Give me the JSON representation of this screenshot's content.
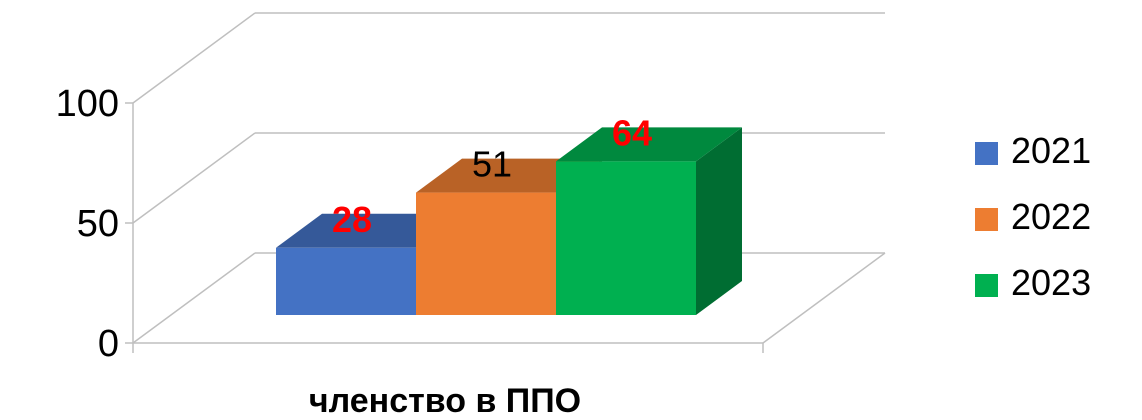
{
  "chart_data": {
    "type": "bar",
    "style": "3d-clustered-column",
    "categories": [
      "членство в ППО"
    ],
    "xlabel": "членство в ППО",
    "ylim": [
      0,
      100
    ],
    "yticks": [
      "0",
      "50",
      "100"
    ],
    "gridlines": true,
    "legend_position": "right",
    "series": [
      {
        "name": "2021",
        "values": [
          28
        ],
        "label": "28",
        "color": "#4472C4",
        "label_color": "#FF0000",
        "label_bold": true
      },
      {
        "name": "2022",
        "values": [
          51
        ],
        "label": "51",
        "color": "#ED7D31",
        "label_color": "#000000",
        "label_bold": false
      },
      {
        "name": "2023",
        "values": [
          64
        ],
        "label": "64",
        "color": "#00B050",
        "label_color": "#FF0000",
        "label_bold": true
      }
    ]
  }
}
